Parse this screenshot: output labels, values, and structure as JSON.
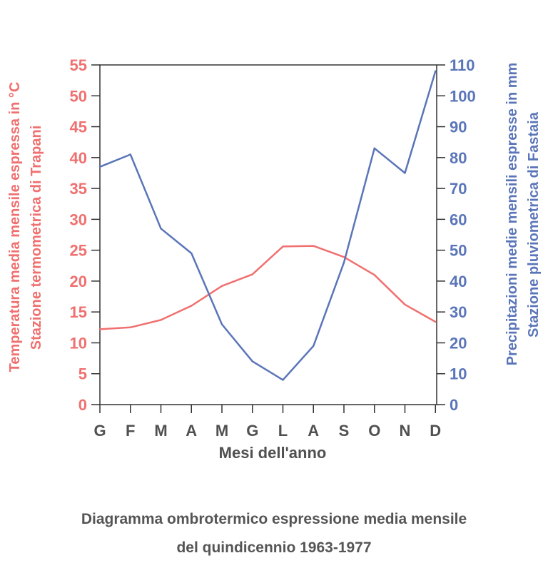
{
  "chart_data": {
    "type": "line",
    "categories": [
      "G",
      "F",
      "M",
      "A",
      "M",
      "G",
      "L",
      "A",
      "S",
      "O",
      "N",
      "D"
    ],
    "xlabel": "Mesi dell'anno",
    "y_left": {
      "label_line1": "Temperatura media mensile espressa in °C",
      "label_line2": "Stazione termometrica di Trapani",
      "lim": [
        0,
        55
      ],
      "ticks": [
        0,
        5,
        10,
        15,
        20,
        25,
        30,
        35,
        40,
        45,
        50,
        55
      ],
      "color": "#f07070"
    },
    "y_right": {
      "label_line1": "Precipitazioni medie mensili espresse in mm",
      "label_line2": "Stazione pluviometrica di Fastaia",
      "lim": [
        0,
        110
      ],
      "ticks": [
        0,
        10,
        20,
        30,
        40,
        50,
        60,
        70,
        80,
        90,
        100,
        110
      ],
      "color": "#5a75b8"
    },
    "series": [
      {
        "axis": "left",
        "color": "#f07070",
        "values": [
          12.2,
          12.5,
          13.7,
          16.0,
          19.2,
          21.1,
          25.6,
          25.7,
          23.9,
          21.0,
          16.2,
          13.4
        ]
      },
      {
        "axis": "right",
        "color": "#5a75b8",
        "values": [
          77,
          81,
          57,
          49,
          26,
          14,
          8,
          19,
          46,
          83,
          75,
          108
        ]
      }
    ],
    "grid": false
  },
  "caption": {
    "line1": "Diagramma ombrotermico espressione media mensile",
    "line2": "del quindicennio 1963-1977"
  }
}
